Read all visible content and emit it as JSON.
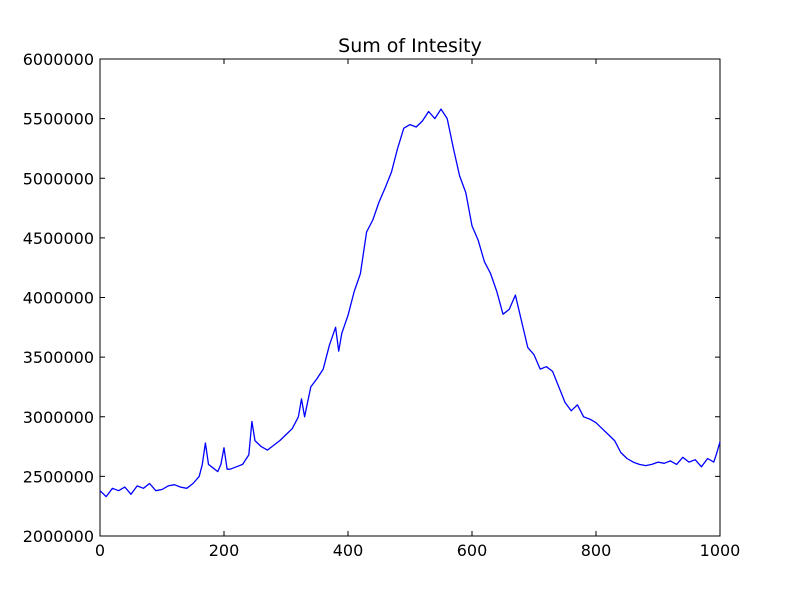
{
  "chart_data": {
    "type": "line",
    "title": "Sum of Intesity",
    "xlabel": "",
    "ylabel": "",
    "xlim": [
      0,
      1000
    ],
    "ylim": [
      2000000,
      6000000
    ],
    "xticks": [
      0,
      200,
      400,
      600,
      800,
      1000
    ],
    "yticks": [
      2000000,
      2500000,
      3000000,
      3500000,
      4000000,
      4500000,
      5000000,
      5500000,
      6000000
    ],
    "grid": false,
    "line_color": "#0000ff",
    "series": [
      {
        "x": [
          0,
          10,
          20,
          30,
          40,
          50,
          60,
          70,
          80,
          90,
          100,
          110,
          120,
          130,
          140,
          150,
          160,
          165,
          170,
          175,
          180,
          190,
          195,
          200,
          205,
          210,
          220,
          230,
          240,
          245,
          250,
          260,
          270,
          280,
          290,
          300,
          310,
          320,
          325,
          330,
          340,
          350,
          360,
          370,
          380,
          385,
          390,
          400,
          410,
          420,
          430,
          440,
          450,
          460,
          470,
          480,
          490,
          500,
          510,
          520,
          530,
          540,
          550,
          560,
          570,
          580,
          590,
          600,
          610,
          620,
          630,
          640,
          650,
          660,
          670,
          680,
          690,
          700,
          710,
          720,
          730,
          740,
          750,
          760,
          770,
          780,
          790,
          800,
          810,
          820,
          830,
          840,
          850,
          860,
          870,
          880,
          890,
          900,
          910,
          920,
          930,
          940,
          950,
          960,
          970,
          980,
          990,
          995,
          1000
        ],
        "y": [
          2380000,
          2330000,
          2400000,
          2380000,
          2410000,
          2350000,
          2420000,
          2400000,
          2440000,
          2380000,
          2390000,
          2420000,
          2430000,
          2410000,
          2400000,
          2440000,
          2500000,
          2600000,
          2780000,
          2600000,
          2580000,
          2540000,
          2600000,
          2740000,
          2560000,
          2560000,
          2580000,
          2600000,
          2680000,
          2960000,
          2800000,
          2750000,
          2720000,
          2760000,
          2800000,
          2850000,
          2900000,
          3000000,
          3150000,
          3000000,
          3250000,
          3320000,
          3400000,
          3600000,
          3750000,
          3550000,
          3700000,
          3850000,
          4050000,
          4200000,
          4550000,
          4650000,
          4800000,
          4920000,
          5050000,
          5250000,
          5420000,
          5450000,
          5430000,
          5480000,
          5560000,
          5500000,
          5580000,
          5500000,
          5250000,
          5020000,
          4880000,
          4600000,
          4480000,
          4300000,
          4200000,
          4050000,
          3860000,
          3900000,
          4020000,
          3800000,
          3580000,
          3520000,
          3400000,
          3420000,
          3380000,
          3250000,
          3120000,
          3050000,
          3100000,
          3000000,
          2980000,
          2950000,
          2900000,
          2850000,
          2800000,
          2700000,
          2650000,
          2620000,
          2600000,
          2590000,
          2600000,
          2620000,
          2610000,
          2630000,
          2600000,
          2660000,
          2620000,
          2640000,
          2580000,
          2650000,
          2620000,
          2700000,
          2790000
        ]
      }
    ]
  }
}
